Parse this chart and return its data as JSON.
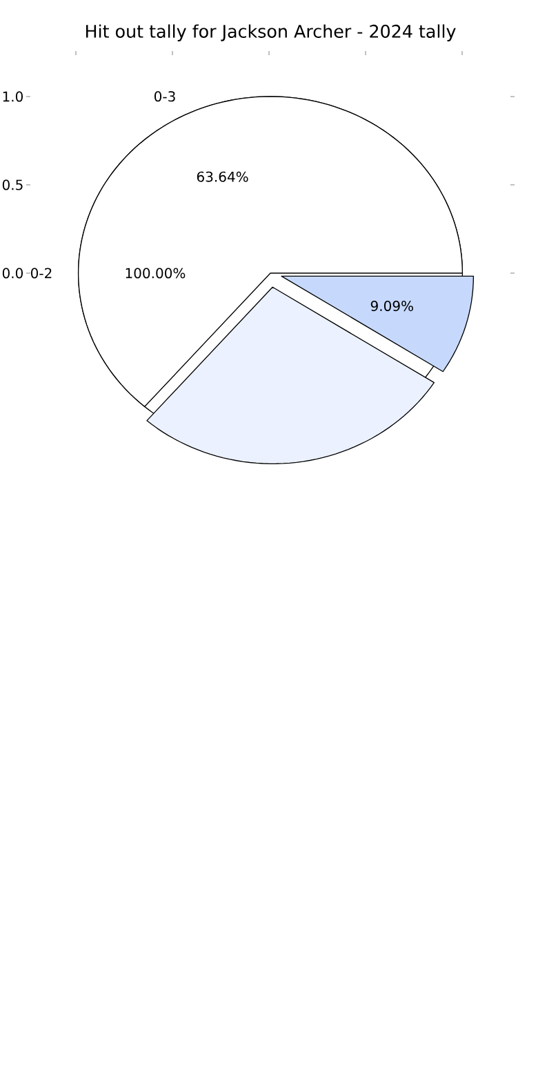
{
  "chart_data": [
    {
      "type": "pie",
      "categories": [
        "0-2"
      ],
      "values": [
        100
      ],
      "colors": [
        "#ffffff"
      ],
      "value_labels": [
        "100.00%"
      ],
      "annotations": [
        "0.0",
        "0.5",
        "1.0"
      ]
    },
    {
      "type": "pie",
      "title": "Hit out tally for Jackson Archer - 2024 tally",
      "categories": [
        "0-3",
        null,
        null
      ],
      "values": [
        63.64,
        27.27,
        9.09
      ],
      "colors": [
        "#ffffff",
        "#ebf1fe",
        "#c6d9fd"
      ],
      "value_labels": [
        "63.64%",
        null,
        "9.09%"
      ]
    }
  ]
}
